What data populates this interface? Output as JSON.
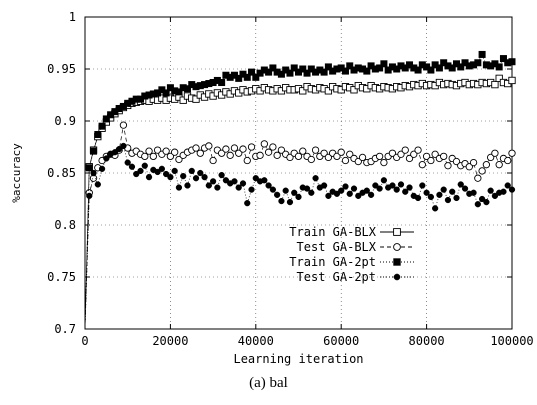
{
  "caption": "(a) bal",
  "chart_data": {
    "type": "line",
    "xlabel": "Learning iteration",
    "ylabel": "%accuracy",
    "xlim": [
      0,
      100000
    ],
    "ylim": [
      0.7,
      1.0
    ],
    "x_ticks": [
      0,
      20000,
      40000,
      60000,
      80000,
      100000
    ],
    "x_tick_labels": [
      "0",
      "20000",
      "40000",
      "60000",
      "80000",
      "100000"
    ],
    "y_ticks": [
      0.7,
      0.75,
      0.8,
      0.85,
      0.9,
      0.95,
      1.0
    ],
    "y_tick_labels": [
      "0.7",
      "0.75",
      "0.8",
      "0.85",
      "0.9",
      "0.95",
      "1"
    ],
    "grid": true,
    "legend_position": "lower-center",
    "x_step": 1000,
    "series": [
      {
        "name": "Train GA-BLX",
        "marker": "open-square",
        "line": "solid",
        "values": [
          0.7,
          0.856,
          0.872,
          0.885,
          0.893,
          0.899,
          0.903,
          0.907,
          0.91,
          0.913,
          0.915,
          0.917,
          0.918,
          0.919,
          0.92,
          0.919,
          0.921,
          0.92,
          0.922,
          0.92,
          0.922,
          0.921,
          0.923,
          0.92,
          0.924,
          0.922,
          0.921,
          0.925,
          0.923,
          0.926,
          0.924,
          0.927,
          0.925,
          0.928,
          0.926,
          0.929,
          0.927,
          0.93,
          0.928,
          0.929,
          0.931,
          0.929,
          0.932,
          0.93,
          0.929,
          0.931,
          0.929,
          0.932,
          0.93,
          0.93,
          0.931,
          0.929,
          0.933,
          0.931,
          0.93,
          0.932,
          0.931,
          0.929,
          0.933,
          0.931,
          0.93,
          0.933,
          0.932,
          0.93,
          0.934,
          0.932,
          0.931,
          0.934,
          0.932,
          0.931,
          0.933,
          0.932,
          0.931,
          0.933,
          0.932,
          0.934,
          0.933,
          0.935,
          0.934,
          0.936,
          0.934,
          0.935,
          0.934,
          0.937,
          0.935,
          0.936,
          0.935,
          0.934,
          0.936,
          0.937,
          0.935,
          0.936,
          0.935,
          0.937,
          0.936,
          0.937,
          0.935,
          0.941,
          0.937,
          0.936,
          0.939
        ]
      },
      {
        "name": "Test GA-BLX",
        "marker": "open-circle",
        "line": "dashed",
        "values": [
          0.7,
          0.831,
          0.845,
          0.855,
          0.862,
          0.866,
          0.868,
          0.867,
          0.872,
          0.896,
          0.874,
          0.869,
          0.871,
          0.868,
          0.866,
          0.871,
          0.866,
          0.872,
          0.868,
          0.871,
          0.866,
          0.87,
          0.863,
          0.867,
          0.87,
          0.872,
          0.874,
          0.869,
          0.874,
          0.876,
          0.862,
          0.872,
          0.869,
          0.873,
          0.867,
          0.874,
          0.869,
          0.873,
          0.862,
          0.875,
          0.866,
          0.867,
          0.878,
          0.87,
          0.875,
          0.867,
          0.872,
          0.868,
          0.865,
          0.869,
          0.866,
          0.871,
          0.866,
          0.863,
          0.872,
          0.866,
          0.869,
          0.865,
          0.869,
          0.866,
          0.87,
          0.862,
          0.868,
          0.864,
          0.861,
          0.865,
          0.86,
          0.861,
          0.864,
          0.866,
          0.86,
          0.866,
          0.869,
          0.865,
          0.868,
          0.872,
          0.864,
          0.868,
          0.872,
          0.858,
          0.866,
          0.862,
          0.868,
          0.864,
          0.866,
          0.857,
          0.864,
          0.861,
          0.857,
          0.859,
          0.856,
          0.86,
          0.845,
          0.852,
          0.858,
          0.865,
          0.869,
          0.858,
          0.864,
          0.862,
          0.869
        ]
      },
      {
        "name": "Train GA-2pt",
        "marker": "filled-square",
        "line": "dotted",
        "values": [
          0.7,
          0.855,
          0.871,
          0.887,
          0.895,
          0.902,
          0.906,
          0.909,
          0.912,
          0.914,
          0.917,
          0.919,
          0.921,
          0.921,
          0.924,
          0.925,
          0.926,
          0.927,
          0.93,
          0.927,
          0.932,
          0.929,
          0.928,
          0.932,
          0.931,
          0.935,
          0.933,
          0.934,
          0.935,
          0.936,
          0.937,
          0.939,
          0.937,
          0.944,
          0.942,
          0.944,
          0.941,
          0.945,
          0.942,
          0.947,
          0.942,
          0.946,
          0.949,
          0.947,
          0.951,
          0.947,
          0.945,
          0.949,
          0.946,
          0.951,
          0.947,
          0.95,
          0.946,
          0.95,
          0.947,
          0.949,
          0.947,
          0.952,
          0.948,
          0.95,
          0.951,
          0.948,
          0.953,
          0.949,
          0.951,
          0.95,
          0.948,
          0.953,
          0.95,
          0.951,
          0.955,
          0.949,
          0.952,
          0.95,
          0.953,
          0.951,
          0.954,
          0.951,
          0.949,
          0.954,
          0.952,
          0.949,
          0.954,
          0.951,
          0.956,
          0.953,
          0.951,
          0.955,
          0.952,
          0.956,
          0.953,
          0.954,
          0.956,
          0.964,
          0.954,
          0.953,
          0.955,
          0.952,
          0.96,
          0.956,
          0.957
        ]
      },
      {
        "name": "Test GA-2pt",
        "marker": "filled-circle",
        "line": "dotted",
        "values": [
          0.7,
          0.828,
          0.85,
          0.839,
          0.854,
          0.864,
          0.868,
          0.87,
          0.873,
          0.876,
          0.86,
          0.856,
          0.849,
          0.852,
          0.857,
          0.846,
          0.853,
          0.851,
          0.854,
          0.849,
          0.846,
          0.852,
          0.836,
          0.847,
          0.838,
          0.852,
          0.845,
          0.85,
          0.846,
          0.838,
          0.842,
          0.836,
          0.848,
          0.843,
          0.84,
          0.842,
          0.836,
          0.84,
          0.821,
          0.834,
          0.845,
          0.842,
          0.843,
          0.838,
          0.834,
          0.829,
          0.823,
          0.833,
          0.822,
          0.831,
          0.827,
          0.836,
          0.835,
          0.831,
          0.845,
          0.836,
          0.838,
          0.828,
          0.832,
          0.83,
          0.833,
          0.837,
          0.83,
          0.835,
          0.828,
          0.831,
          0.833,
          0.829,
          0.838,
          0.835,
          0.843,
          0.836,
          0.838,
          0.834,
          0.839,
          0.832,
          0.836,
          0.828,
          0.826,
          0.838,
          0.831,
          0.827,
          0.816,
          0.829,
          0.834,
          0.824,
          0.832,
          0.826,
          0.839,
          0.835,
          0.83,
          0.831,
          0.82,
          0.825,
          0.822,
          0.833,
          0.828,
          0.831,
          0.832,
          0.838,
          0.834
        ]
      }
    ]
  }
}
